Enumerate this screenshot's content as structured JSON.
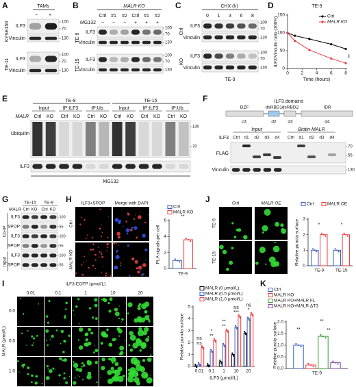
{
  "panels": {
    "A": {
      "letter": "A",
      "treatment": "TAMs",
      "signs": [
        "−",
        "+"
      ],
      "cells": [
        "KYSE150",
        "TE-11"
      ],
      "proteins": [
        "ILF3",
        "Vinculin"
      ],
      "markers": [
        "100",
        "70",
        "130"
      ]
    },
    "B": {
      "letter": "B",
      "title": "MALR KO",
      "treatment": "MG132",
      "columns": [
        "Ctrl",
        "#1",
        "#2",
        "Ctrl",
        "#1",
        "#2"
      ],
      "signs": [
        "−",
        "−",
        "−",
        "+",
        "+",
        "+"
      ],
      "cells": [
        "TE-9",
        "TE-15"
      ],
      "proteins": [
        "ILF3",
        "Vinculin"
      ],
      "markers": [
        "100",
        "70",
        "130"
      ]
    },
    "C": {
      "letter": "C",
      "title": "CHX (h)",
      "columns": [
        "0",
        "1",
        "3",
        "6",
        "8"
      ],
      "groups": [
        "Ctrl",
        "KO"
      ],
      "proteins": [
        "ILF3",
        "Vinculin"
      ],
      "markers": [
        "100",
        "70",
        "130"
      ],
      "cell": "TE-9"
    },
    "D": {
      "letter": "D"
    },
    "E": {
      "letter": "E",
      "cells": [
        "TE-9",
        "TE-15"
      ],
      "groups": [
        "Input",
        "IP:ILF3",
        "IP:Ub"
      ],
      "factor": "MALR",
      "columns": [
        "Ctrl",
        "KO"
      ],
      "proteins": [
        "Ubiquitin",
        "ILF3"
      ],
      "markers": [
        "130",
        "70"
      ],
      "treatment": "MG132"
    },
    "F": {
      "letter": "F",
      "title": "ILF3 domains",
      "domains": [
        "DZF",
        "dsRBD1",
        "dsRBD2",
        "IDR"
      ],
      "fragments": [
        "d1",
        "d2",
        "d3",
        "d4"
      ],
      "groups": [
        "Input",
        "Biotin-MALR"
      ],
      "row_label": "ILF3",
      "columns": [
        "Ctrl",
        "d1",
        "d2",
        "d3",
        "d4"
      ],
      "proteins": [
        "FLAG",
        "Vinculin"
      ],
      "markers": [
        "70",
        "55",
        "130"
      ]
    },
    "G": {
      "letter": "G",
      "cells": [
        "TE-15",
        "TE-9"
      ],
      "factor": "MALR",
      "columns": [
        "Ctrl",
        "KO"
      ],
      "proteins": [
        "ILF3",
        "SPOP"
      ],
      "sections": [
        "Co-IP",
        "Input"
      ],
      "markers": [
        "100",
        "55"
      ]
    },
    "H": {
      "letter": "H",
      "stains": [
        "ILF3+SPOP",
        "Merge with DAPI"
      ],
      "conditions": [
        "Ctrl",
        "MALR KO"
      ]
    },
    "I": {
      "letter": "I",
      "title": "ILF3-EGFP (μmol/L)",
      "columns": [
        "0.01",
        "0.1",
        "1",
        "10",
        "20"
      ],
      "rows": [
        "0.0",
        "0.5",
        "1.0"
      ],
      "row_title": "MALR (μmol/L)"
    },
    "J": {
      "letter": "J",
      "conditions": [
        "Ctrl",
        "MALR OE"
      ],
      "cells": [
        "TE-9",
        "TE-15"
      ]
    },
    "K": {
      "letter": "K"
    }
  },
  "chart_data": [
    {
      "type": "line",
      "title": "TE-9",
      "x": [
        0,
        1,
        3,
        6,
        8
      ],
      "xlim": [
        0,
        8
      ],
      "xticks": [
        0,
        2,
        4,
        6,
        8
      ],
      "ylim": [
        0,
        150
      ],
      "yticks": [
        0,
        50,
        100,
        150
      ],
      "xlabel": "Time (hours)",
      "ylabel": "ILF3/Vinculin ratio (100%)",
      "series": [
        {
          "name": "Ctrl",
          "color": "#000000",
          "values": [
            100,
            92,
            83,
            68,
            55
          ]
        },
        {
          "name": "MALR KO",
          "color": "#e8393f",
          "values": [
            100,
            78,
            52,
            28,
            15
          ]
        }
      ],
      "annotations": [
        "**"
      ]
    },
    {
      "type": "bar",
      "categories": [
        "TE-9"
      ],
      "ylim": [
        0,
        6
      ],
      "yticks": [
        0,
        2,
        4,
        6
      ],
      "ylabel": "PLA signals per cell",
      "series": [
        {
          "name": "Ctrl",
          "color": "#3b5fc0",
          "values": [
            1.0
          ]
        },
        {
          "name": "MALR KO",
          "color": "#e8393f",
          "values": [
            3.6
          ]
        }
      ],
      "annotations": [
        "**"
      ]
    },
    {
      "type": "bar",
      "categories": [
        "TE-9",
        "TE-15"
      ],
      "ylim": [
        0,
        3
      ],
      "yticks": [
        0,
        1,
        2,
        3
      ],
      "ylabel": "Relative puncta surface",
      "series": [
        {
          "name": "Ctrl",
          "color": "#3b5fc0",
          "values": [
            1.0,
            1.0
          ]
        },
        {
          "name": "MALR OE",
          "color": "#e8393f",
          "values": [
            2.0,
            2.0
          ]
        }
      ],
      "annotations": [
        "*",
        "*"
      ]
    },
    {
      "type": "bar",
      "categories": [
        "0.01",
        "0.1",
        "1",
        "10",
        "20"
      ],
      "ylim": [
        0,
        5
      ],
      "yticks": [
        0,
        1,
        2,
        3,
        4,
        5
      ],
      "ylabel": "Relative puncta surface",
      "xlabel": "ILF3 (μmol/L)",
      "series": [
        {
          "name": "MALR (0 μmol/L)",
          "color": "#000000",
          "values": [
            0.05,
            0.1,
            0.4,
            1.0,
            2.8
          ]
        },
        {
          "name": "MALR (0.5 μmol/L)",
          "color": "#3b5fc0",
          "values": [
            0.2,
            1.3,
            1.8,
            3.3,
            4.0
          ]
        },
        {
          "name": "MALR (1.0 μmol/L)",
          "color": "#e8393f",
          "values": [
            1.6,
            2.2,
            3.0,
            4.2,
            4.4
          ]
        }
      ],
      "annotations": [
        "ns",
        "ns",
        "**",
        "*",
        "**",
        "**",
        "***",
        "ns",
        "*",
        "ns"
      ]
    },
    {
      "type": "bar",
      "categories": [
        "TE-9"
      ],
      "ylim": [
        0,
        2
      ],
      "yticks": [
        {
          "value": 0,
          "label": "0.0"
        },
        {
          "value": 0.5,
          "label": "0.5"
        },
        {
          "value": 1,
          "label": "1.0"
        },
        {
          "value": 1.5,
          "label": "1.5"
        },
        {
          "value": 2,
          "label": "2.0"
        }
      ],
      "ylabel": "Relative puncta surface",
      "series": [
        {
          "name": "Ctrl",
          "color": "#3b5fc0",
          "values": [
            1.0
          ]
        },
        {
          "name": "MALR KO",
          "color": "#e8393f",
          "values": [
            0.15
          ]
        },
        {
          "name": "MALR KO+MALR FL",
          "color": "#2ca02c",
          "values": [
            1.38
          ]
        },
        {
          "name": "MALR KO+MALR ΔT3",
          "color": "#8e44ad",
          "values": [
            0.25
          ]
        }
      ],
      "annotations": [
        "**",
        "**",
        "**"
      ]
    }
  ]
}
